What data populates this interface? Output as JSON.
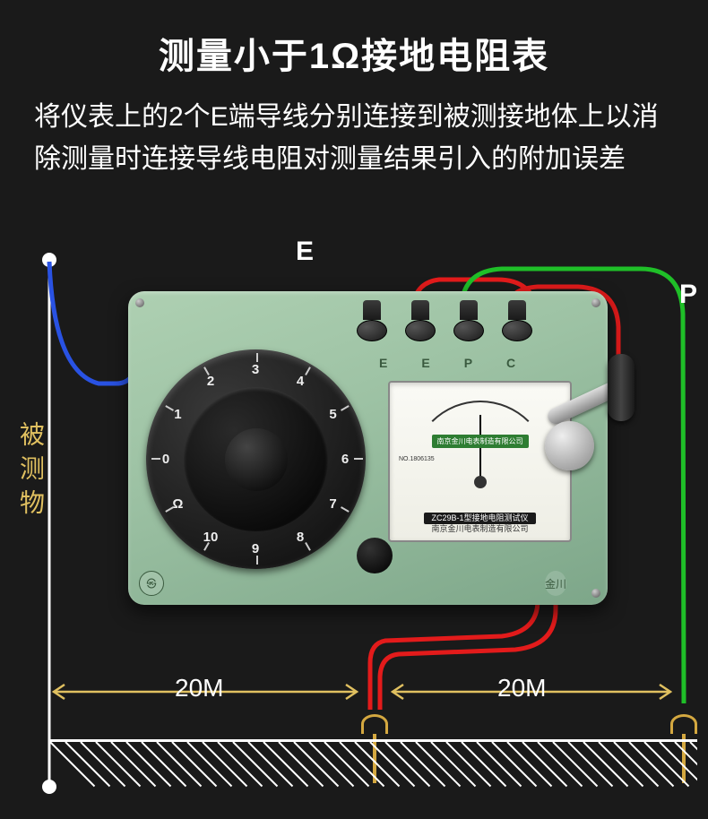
{
  "title": "测量小于1Ω接地电阻表",
  "description": "将仪表上的2个E端导线分别连接到被测接地体上以消除测量时连接导线电阻对测量结果引入的附加误差",
  "labels": {
    "E": "E",
    "P": "P",
    "C": "C",
    "subject": "被测物",
    "dist_left": "20M",
    "dist_right": "20M"
  },
  "wires": {
    "blue_color": "#2952e3",
    "red_color": "#e31b1b",
    "green_color": "#1fbf28",
    "stroke_width": 5
  },
  "device": {
    "body_color_a": "#aed0b2",
    "body_color_b": "#7da689",
    "terminal_labels": [
      "E",
      "E",
      "P",
      "C"
    ],
    "dial_numbers": [
      "0",
      "1",
      "2",
      "3",
      "4",
      "5",
      "6",
      "7",
      "8",
      "9",
      "10",
      "Ω"
    ],
    "meter_maker": "南京金川电表制造有限公司",
    "meter_model_line1": "ZC29B-1型接地电阻测试仪",
    "meter_model_line2": "南京金川电表制造有限公司",
    "meter_serial": "NO.1806135"
  },
  "ground": {
    "hatch_color": "#ffffff",
    "hatch_spacing": 17,
    "hatch_count": 46
  },
  "distance_arrow_color": "#e0c060",
  "background_color": "#1a1a1a"
}
